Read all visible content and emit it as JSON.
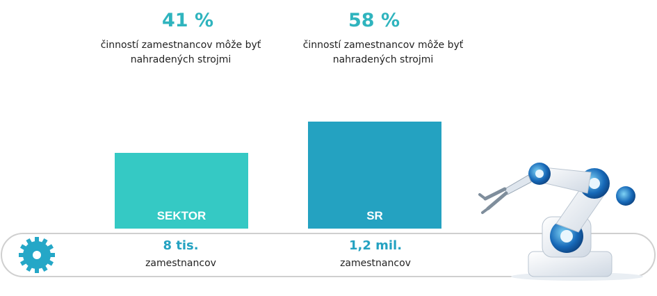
{
  "chart_data": {
    "type": "bar",
    "categories": [
      "SEKTOR",
      "SR"
    ],
    "values": [
      41,
      58
    ],
    "unit": "%",
    "value_labels": [
      "41 %",
      "58 %"
    ],
    "value_description": "činností zamestnancov môže byť nahradených strojmi",
    "counts": [
      {
        "value": "8 tis.",
        "label": "zamestnancov"
      },
      {
        "value": "1,2 mil.",
        "label": "zamestnancov"
      }
    ],
    "ylim": [
      0,
      100
    ],
    "grid": false,
    "colors": [
      "#35c9c4",
      "#24a2c1"
    ]
  },
  "annotations": [
    {
      "percent": "41 %",
      "line1": "činností zamestnancov môže byť",
      "line2": "nahradených strojmi"
    },
    {
      "percent": "58 %",
      "line1": "činností zamestnancov môže byť",
      "line2": "nahradených strojmi"
    }
  ],
  "icons": [
    "gear-icon",
    "robot-arm-icon"
  ],
  "colors": {
    "teal": "#35c9c4",
    "blue": "#24a2c1",
    "pct_text": "#2fb4be",
    "count_text": "#24a2c1"
  }
}
